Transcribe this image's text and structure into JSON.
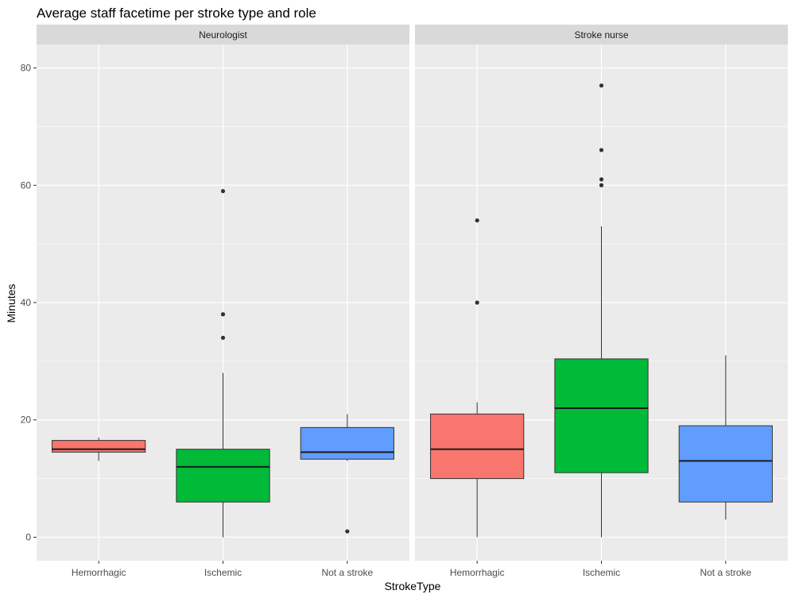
{
  "chart_data": {
    "type": "boxplot",
    "title": "Average staff facetime per stroke type and role",
    "xlabel": "StrokeType",
    "ylabel": "Minutes",
    "ylim": [
      -4,
      84
    ],
    "y_ticks": [
      0,
      20,
      40,
      60,
      80
    ],
    "categories": [
      "Hemorrhagic",
      "Ischemic",
      "Not a stroke"
    ],
    "fill_colors": {
      "Hemorrhagic": "#F8766D",
      "Ischemic": "#00BA38",
      "Not a stroke": "#619CFF"
    },
    "panel_background": "#EBEBEB",
    "strip_background": "#D9D9D9",
    "grid": true,
    "facets": [
      {
        "label": "Neurologist",
        "boxes": [
          {
            "category": "Hemorrhagic",
            "lower_whisker": 13,
            "q1": 14.5,
            "median": 15,
            "q3": 16.5,
            "upper_whisker": 17,
            "outliers": []
          },
          {
            "category": "Ischemic",
            "lower_whisker": 0,
            "q1": 6,
            "median": 12,
            "q3": 15,
            "upper_whisker": 28,
            "outliers": [
              34,
              38,
              59
            ]
          },
          {
            "category": "Not a stroke",
            "lower_whisker": 13,
            "q1": 13.3,
            "median": 14.5,
            "q3": 18.7,
            "upper_whisker": 21,
            "outliers": [
              1
            ]
          }
        ]
      },
      {
        "label": "Stroke nurse",
        "boxes": [
          {
            "category": "Hemorrhagic",
            "lower_whisker": 0,
            "q1": 10,
            "median": 15,
            "q3": 21,
            "upper_whisker": 23,
            "outliers": [
              40,
              54
            ]
          },
          {
            "category": "Ischemic",
            "lower_whisker": 0,
            "q1": 11,
            "median": 22,
            "q3": 30.4,
            "upper_whisker": 53,
            "outliers": [
              60,
              61,
              66,
              77
            ]
          },
          {
            "category": "Not a stroke",
            "lower_whisker": 3,
            "q1": 6,
            "median": 13,
            "q3": 19,
            "upper_whisker": 31,
            "outliers": []
          }
        ]
      }
    ]
  }
}
